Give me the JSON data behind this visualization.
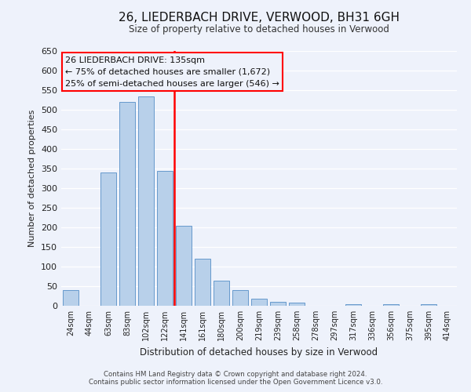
{
  "title": "26, LIEDERBACH DRIVE, VERWOOD, BH31 6GH",
  "subtitle": "Size of property relative to detached houses in Verwood",
  "xlabel": "Distribution of detached houses by size in Verwood",
  "ylabel": "Number of detached properties",
  "bar_labels": [
    "24sqm",
    "44sqm",
    "63sqm",
    "83sqm",
    "102sqm",
    "122sqm",
    "141sqm",
    "161sqm",
    "180sqm",
    "200sqm",
    "219sqm",
    "239sqm",
    "258sqm",
    "278sqm",
    "297sqm",
    "317sqm",
    "336sqm",
    "356sqm",
    "375sqm",
    "395sqm",
    "414sqm"
  ],
  "bar_values": [
    40,
    0,
    340,
    520,
    535,
    345,
    205,
    120,
    65,
    40,
    18,
    10,
    8,
    0,
    0,
    5,
    0,
    5,
    0,
    5,
    0
  ],
  "bar_color": "#b8d0ea",
  "bar_edge_color": "#6699cc",
  "vline_color": "red",
  "vline_pos": 6.0,
  "annotation_title": "26 LIEDERBACH DRIVE: 135sqm",
  "annotation_line1": "← 75% of detached houses are smaller (1,672)",
  "annotation_line2": "25% of semi-detached houses are larger (546) →",
  "annotation_box_edgecolor": "red",
  "ylim": [
    0,
    650
  ],
  "yticks": [
    0,
    50,
    100,
    150,
    200,
    250,
    300,
    350,
    400,
    450,
    500,
    550,
    600,
    650
  ],
  "bg_color": "#eef2fb",
  "grid_color": "#ffffff",
  "footer_line1": "Contains HM Land Registry data © Crown copyright and database right 2024.",
  "footer_line2": "Contains public sector information licensed under the Open Government Licence v3.0."
}
